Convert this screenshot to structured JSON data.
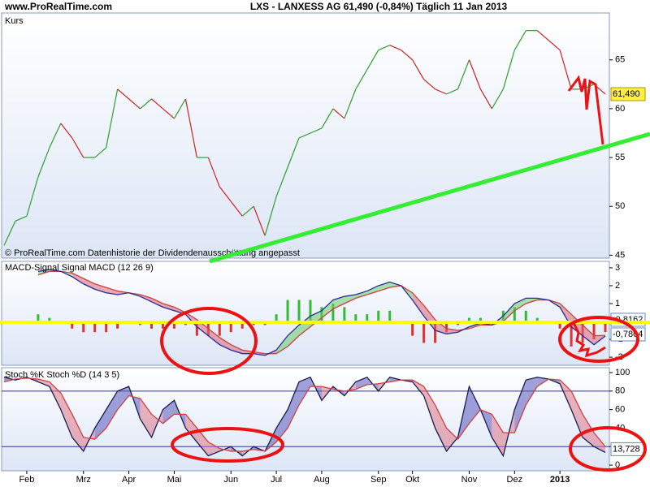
{
  "header": {
    "site": "www.ProRealTime.com",
    "title": "LXS - LANXESS AG   61,490 (-0,84%)   Täglich  11 Jan 2013"
  },
  "chart_data": [
    {
      "type": "price",
      "label": "Kurs",
      "note": "© ProRealTime.com  Datenhistorie der Dividendenausschüttung angepasst",
      "values": [
        46,
        48.5,
        49,
        53,
        56,
        58.5,
        57,
        55,
        55,
        56,
        62,
        61,
        60,
        61,
        60,
        59,
        61,
        55,
        55,
        52,
        50.5,
        49,
        50,
        47,
        51,
        54,
        57,
        57.5,
        58,
        60,
        59,
        62,
        64,
        66,
        66.5,
        66,
        65,
        63,
        62,
        61.5,
        62,
        65,
        62,
        60,
        62,
        66,
        68,
        68,
        67,
        66,
        62,
        62,
        62.5,
        61.49
      ],
      "last_value_label": "61,490",
      "up_color": "#2e9e2e",
      "down_color": "#cc2222",
      "label_color": "#cc2222",
      "ylim": [
        44.7,
        69.8
      ],
      "yticks": [
        45,
        50,
        55,
        60,
        65
      ]
    },
    {
      "type": "macd",
      "series": [
        {
          "name": "MACD-Signal Signal",
          "color": "#d04040",
          "values": [
            null,
            null,
            null,
            2.6,
            2.8,
            2.8,
            2.7,
            2.4,
            2.1,
            1.9,
            1.7,
            1.6,
            1.5,
            1.3,
            1.0,
            0.8,
            0.5,
            0.1,
            -0.4,
            -0.9,
            -1.3,
            -1.6,
            -1.7,
            -1.8,
            -1.8,
            -1.4,
            -0.8,
            -0.3,
            0.2,
            0.7,
            1.0,
            1.3,
            1.5,
            1.7,
            1.9,
            2.0,
            1.6,
            0.9,
            0.1,
            -0.4,
            -0.5,
            -0.4,
            -0.2,
            -0.2,
            0.0,
            0.6,
            1.0,
            1.2,
            1.2,
            1.0,
            0.4,
            -0.2,
            -0.8,
            -0.7804
          ],
          "value_label": "-0,7804"
        },
        {
          "name": "MACD (12 26 9)",
          "color": "#2a2a9a",
          "values": [
            null,
            null,
            null,
            2.8,
            2.9,
            2.8,
            2.5,
            2.1,
            1.8,
            1.6,
            1.5,
            1.6,
            1.4,
            1.1,
            0.8,
            0.6,
            0.4,
            -0.3,
            -0.8,
            -1.3,
            -1.6,
            -1.8,
            -1.8,
            -1.9,
            -1.6,
            -0.8,
            -0.2,
            0.3,
            0.6,
            1.2,
            1.4,
            1.5,
            1.7,
            2.0,
            2.2,
            2.0,
            1.2,
            0.3,
            -0.5,
            -0.7,
            -0.6,
            -0.3,
            -0.1,
            -0.2,
            0.3,
            1.0,
            1.3,
            1.3,
            1.2,
            0.8,
            -0.3,
            -0.8,
            -1.3,
            -0.8162
          ],
          "value_label": "-0,8162"
        }
      ],
      "histogram": {
        "up_color": "#33bb33",
        "down_color": "#dd3333",
        "values": [
          null,
          null,
          null,
          0.4,
          0.2,
          0,
          -0.4,
          -0.6,
          -0.6,
          -0.6,
          -0.4,
          0,
          -0.2,
          -0.4,
          -0.4,
          -0.4,
          -0.2,
          -0.8,
          -0.8,
          -0.8,
          -0.6,
          -0.4,
          -0.2,
          -0.2,
          0.4,
          1.2,
          1.2,
          1.2,
          0.8,
          1.0,
          0.8,
          0.4,
          0.4,
          0.6,
          0.6,
          0,
          -0.8,
          -1.2,
          -1.2,
          -0.6,
          -0.2,
          0.2,
          0.2,
          0,
          0.6,
          0.8,
          0.6,
          0.2,
          0,
          -0.4,
          -1.4,
          -1.2,
          -1.0,
          -0.6
        ]
      },
      "ylim": [
        -2.45,
        3.36
      ],
      "yticks": [
        -2,
        -1,
        0,
        1,
        2,
        3
      ]
    },
    {
      "type": "stoch",
      "categories": [
        null,
        null,
        "Feb",
        null,
        null,
        null,
        null,
        "Mrz",
        null,
        null,
        null,
        "Apr",
        null,
        null,
        null,
        "Mai",
        null,
        null,
        null,
        null,
        "Jun",
        null,
        null,
        null,
        "Jul",
        null,
        null,
        null,
        "Aug",
        null,
        null,
        null,
        null,
        "Sep",
        null,
        null,
        "Okt",
        null,
        null,
        null,
        null,
        "Nov",
        null,
        null,
        null,
        "Dez",
        null,
        null,
        null,
        "2013",
        null,
        null,
        null,
        null
      ],
      "series": [
        {
          "name": "Stoch %K",
          "color": "#1a1a50",
          "values": [
            95,
            92,
            95,
            90,
            85,
            60,
            30,
            15,
            40,
            60,
            80,
            85,
            50,
            30,
            60,
            70,
            40,
            25,
            10,
            15,
            20,
            10,
            20,
            15,
            40,
            60,
            90,
            95,
            70,
            85,
            75,
            90,
            95,
            80,
            95,
            92,
            90,
            75,
            40,
            15,
            30,
            85,
            60,
            30,
            10,
            60,
            92,
            95,
            93,
            88,
            60,
            30,
            20,
            13.728
          ],
          "value_label": "13,728"
        },
        {
          "name": "Stoch %D (14 3 5)",
          "color": "#d04040",
          "values": [
            90,
            93,
            94,
            93,
            90,
            78,
            55,
            30,
            28,
            40,
            60,
            75,
            72,
            55,
            45,
            55,
            55,
            40,
            25,
            18,
            15,
            15,
            17,
            15,
            25,
            40,
            65,
            85,
            85,
            82,
            80,
            82,
            87,
            88,
            90,
            92,
            92,
            85,
            65,
            40,
            28,
            45,
            60,
            55,
            35,
            35,
            65,
            85,
            93,
            92,
            80,
            55,
            35,
            20
          ]
        }
      ],
      "levels": [
        20,
        80
      ],
      "level_color": "#3030a0",
      "ylim": [
        -6.1,
        105.3
      ],
      "yticks": [
        0,
        20,
        40,
        60,
        80,
        100
      ]
    }
  ]
}
